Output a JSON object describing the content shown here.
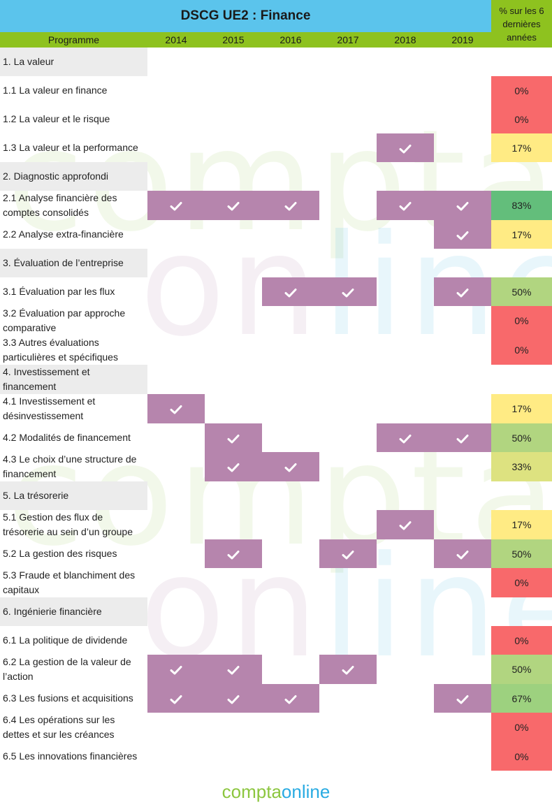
{
  "title": "DSCG UE2 : Finance",
  "header": {
    "programme": "Programme",
    "years": [
      "2014",
      "2015",
      "2016",
      "2017",
      "2018",
      "2019"
    ],
    "pct_header": "% sur les 6 dernières années"
  },
  "brand": {
    "part1": "compta",
    "part2": "online"
  },
  "colors": {
    "title_bg": "#5bc4ec",
    "header_bg": "#8ec21f",
    "mark": "#b685ad",
    "section_bg": "#ececec",
    "red": "#f8696b",
    "yellow": "#ffeb84",
    "yellowgreen": "#dde280",
    "lightgreen": "#b1d580",
    "midgreen": "#9dd17f",
    "green": "#63be7b"
  },
  "chart_data": {
    "type": "table",
    "title": "DSCG UE2 : Finance",
    "columns": [
      "2014",
      "2015",
      "2016",
      "2017",
      "2018",
      "2019"
    ],
    "rows": [
      {
        "label": "1. La valeur",
        "section": true
      },
      {
        "label": "1.1 La valeur en finance",
        "marks": [
          0,
          0,
          0,
          0,
          0,
          0
        ],
        "pct": "0%",
        "color": "red"
      },
      {
        "label": "1.2 La valeur et le risque",
        "marks": [
          0,
          0,
          0,
          0,
          0,
          0
        ],
        "pct": "0%",
        "color": "red"
      },
      {
        "label": "1.3 La valeur et la performance",
        "marks": [
          0,
          0,
          0,
          0,
          1,
          0
        ],
        "pct": "17%",
        "color": "yellow"
      },
      {
        "label": "2. Diagnostic approfondi",
        "section": true
      },
      {
        "label": "2.1 Analyse financière des comptes consolidés",
        "marks": [
          1,
          1,
          1,
          0,
          1,
          1
        ],
        "pct": "83%",
        "color": "green"
      },
      {
        "label": "2.2 Analyse extra-financière",
        "marks": [
          0,
          0,
          0,
          0,
          0,
          1
        ],
        "pct": "17%",
        "color": "yellow"
      },
      {
        "label": "3. Évaluation de l’entreprise",
        "section": true
      },
      {
        "label": "3.1 Évaluation par les flux",
        "marks": [
          0,
          0,
          1,
          1,
          0,
          1
        ],
        "pct": "50%",
        "color": "lightgreen"
      },
      {
        "label": "3.2 Évaluation par approche comparative",
        "marks": [
          0,
          0,
          0,
          0,
          0,
          0
        ],
        "pct": "0%",
        "color": "red"
      },
      {
        "label": "3.3 Autres évaluations particulières et spécifiques",
        "marks": [
          0,
          0,
          0,
          0,
          0,
          0
        ],
        "pct": "0%",
        "color": "red"
      },
      {
        "label": "4. Investissement et financement",
        "section": true
      },
      {
        "label": "4.1 Investissement et désinvestissement",
        "marks": [
          1,
          0,
          0,
          0,
          0,
          0
        ],
        "pct": "17%",
        "color": "yellow"
      },
      {
        "label": "4.2 Modalités de financement",
        "marks": [
          0,
          1,
          0,
          0,
          1,
          1
        ],
        "pct": "50%",
        "color": "lightgreen"
      },
      {
        "label": "4.3 Le choix d’une structure de financement",
        "marks": [
          0,
          1,
          1,
          0,
          0,
          0
        ],
        "pct": "33%",
        "color": "yellowgreen"
      },
      {
        "label": "5. La trésorerie",
        "section": true
      },
      {
        "label": "5.1 Gestion des flux de trésorerie au sein d’un groupe",
        "marks": [
          0,
          0,
          0,
          0,
          1,
          0
        ],
        "pct": "17%",
        "color": "yellow"
      },
      {
        "label": "5.2 La gestion des risques",
        "marks": [
          0,
          1,
          0,
          1,
          0,
          1
        ],
        "pct": "50%",
        "color": "lightgreen"
      },
      {
        "label": "5.3 Fraude et blanchiment des capitaux",
        "marks": [
          0,
          0,
          0,
          0,
          0,
          0
        ],
        "pct": "0%",
        "color": "red"
      },
      {
        "label": "6. Ingénierie financière",
        "section": true
      },
      {
        "label": "6.1 La politique de dividende",
        "marks": [
          0,
          0,
          0,
          0,
          0,
          0
        ],
        "pct": "0%",
        "color": "red"
      },
      {
        "label": "6.2 La gestion de la valeur de l’action",
        "marks": [
          1,
          1,
          0,
          1,
          0,
          0
        ],
        "pct": "50%",
        "color": "lightgreen"
      },
      {
        "label": "6.3 Les fusions et acquisitions",
        "marks": [
          1,
          1,
          1,
          0,
          0,
          1
        ],
        "pct": "67%",
        "color": "midgreen"
      },
      {
        "label": "6.4 Les opérations sur les dettes et sur les créances",
        "marks": [
          0,
          0,
          0,
          0,
          0,
          0
        ],
        "pct": "0%",
        "color": "red"
      },
      {
        "label": "6.5 Les innovations financières",
        "marks": [
          0,
          0,
          0,
          0,
          0,
          0
        ],
        "pct": "0%",
        "color": "red"
      }
    ]
  }
}
